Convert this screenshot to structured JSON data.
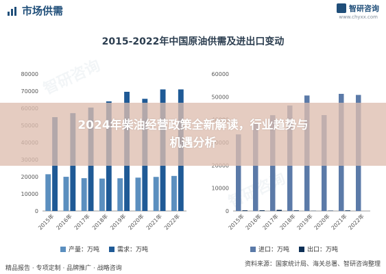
{
  "header": {
    "title": "市场供需",
    "brand": "智研咨询",
    "url": "www.chyxx.com"
  },
  "overlay_text_line1": "2024年柴油经营政策全新解读，行业趋势与",
  "overlay_text_line2": "机遇分析",
  "footer": {
    "left": "精品报告 · 专项定制 · 品牌推广 · 战略咨询",
    "source": "资料来源：国家统计局、海关总署、智研咨询整理"
  },
  "colors": {
    "title_blue": "#1f4e79",
    "supply": "#5b8fbf",
    "demand": "#1f5a96",
    "import": "#5b7aa8",
    "export": "#0d2f56"
  },
  "chart_data": [
    {
      "type": "bar",
      "title": "2015-2022年中国原油供需及进出口变动",
      "categories": [
        "2015年",
        "2016年",
        "2017年",
        "2018年",
        "2019年",
        "2020年",
        "2021年",
        "2022年"
      ],
      "series": [
        {
          "name": "产量：万吨",
          "values": [
            21456,
            19969,
            19151,
            18932,
            19101,
            19477,
            19898,
            20467
          ]
        },
        {
          "name": "需求：万吨",
          "values": [
            54788,
            57126,
            60395,
            64000,
            69600,
            65500,
            71000,
            71000
          ]
        }
      ],
      "ylim": [
        0,
        80000
      ],
      "yticks": [
        0,
        10000,
        20000,
        30000,
        40000,
        50000,
        60000,
        70000,
        80000
      ],
      "grid": false,
      "legend": "bottom"
    },
    {
      "type": "bar",
      "categories": [
        "2015年",
        "2016年",
        "2017年",
        "2018年",
        "2019年",
        "2020年",
        "2021年",
        "2022年"
      ],
      "series": [
        {
          "name": "进口：万吨",
          "values": [
            33550,
            38101,
            41957,
            46190,
            50572,
            42000,
            51298,
            50828
          ]
        },
        {
          "name": "出口：万吨",
          "values": [
            286,
            294,
            486,
            263,
            81,
            164,
            260,
            0
          ]
        }
      ],
      "ylim": [
        0,
        60000
      ],
      "yticks": [
        0,
        10000,
        20000,
        30000,
        40000,
        50000,
        60000
      ],
      "grid": false,
      "legend": "bottom"
    }
  ]
}
